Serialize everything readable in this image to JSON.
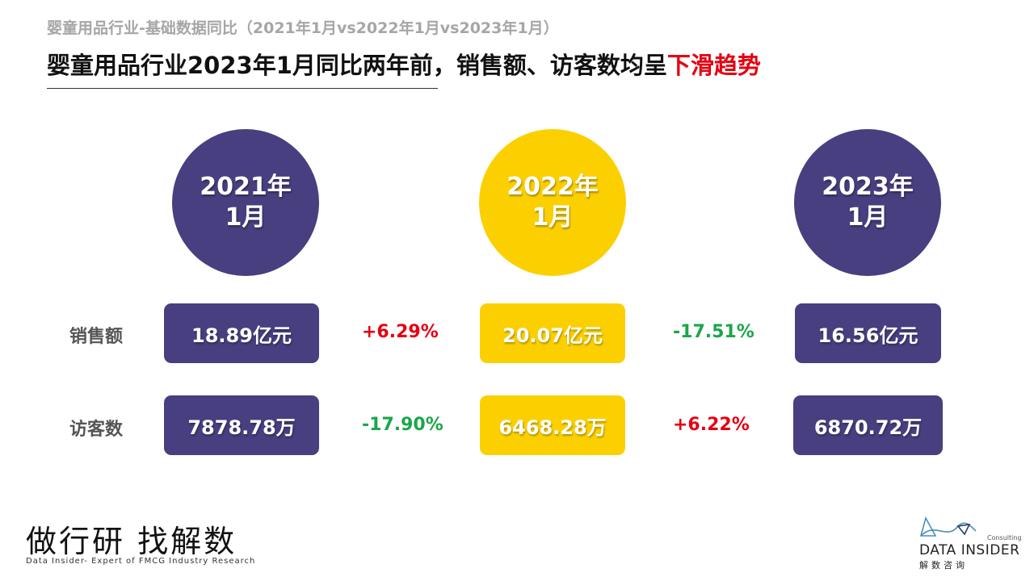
{
  "header": {
    "subtitle": "婴童用品行业-基础数据同比（2021年1月vs2022年1月vs2023年1月）",
    "headline_main": "婴童用品行业2023年1月同比两年前，销售额、访客数均呈",
    "headline_highlight": "下滑趋势"
  },
  "periods": [
    {
      "year": "2021年",
      "month": "1月",
      "color": "#473f7f"
    },
    {
      "year": "2022年",
      "month": "1月",
      "color": "#fcd000"
    },
    {
      "year": "2023年",
      "month": "1月",
      "color": "#473f7f"
    }
  ],
  "metrics": {
    "sales": {
      "label": "销售额",
      "values": [
        "18.89亿元",
        "20.07亿元",
        "16.56亿元"
      ],
      "changes": [
        "+6.29%",
        "-17.51%"
      ]
    },
    "visitors": {
      "label": "访客数",
      "values": [
        "7878.78万",
        "6468.28万",
        "6870.72万"
      ],
      "changes": [
        "-17.90%",
        "+6.22%"
      ]
    }
  },
  "colors": {
    "navy": "#473f7f",
    "gold": "#fcd000",
    "increase": "#e60012",
    "decrease": "#1aa64a"
  },
  "footer": {
    "slogan": "做行研 找解数",
    "slogan_sub": "Data Insider- Expert of FMCG Industry Research",
    "logo_consulting": "Consulting",
    "logo_name": "DATA INSIDER",
    "logo_cn": "解数咨询"
  }
}
